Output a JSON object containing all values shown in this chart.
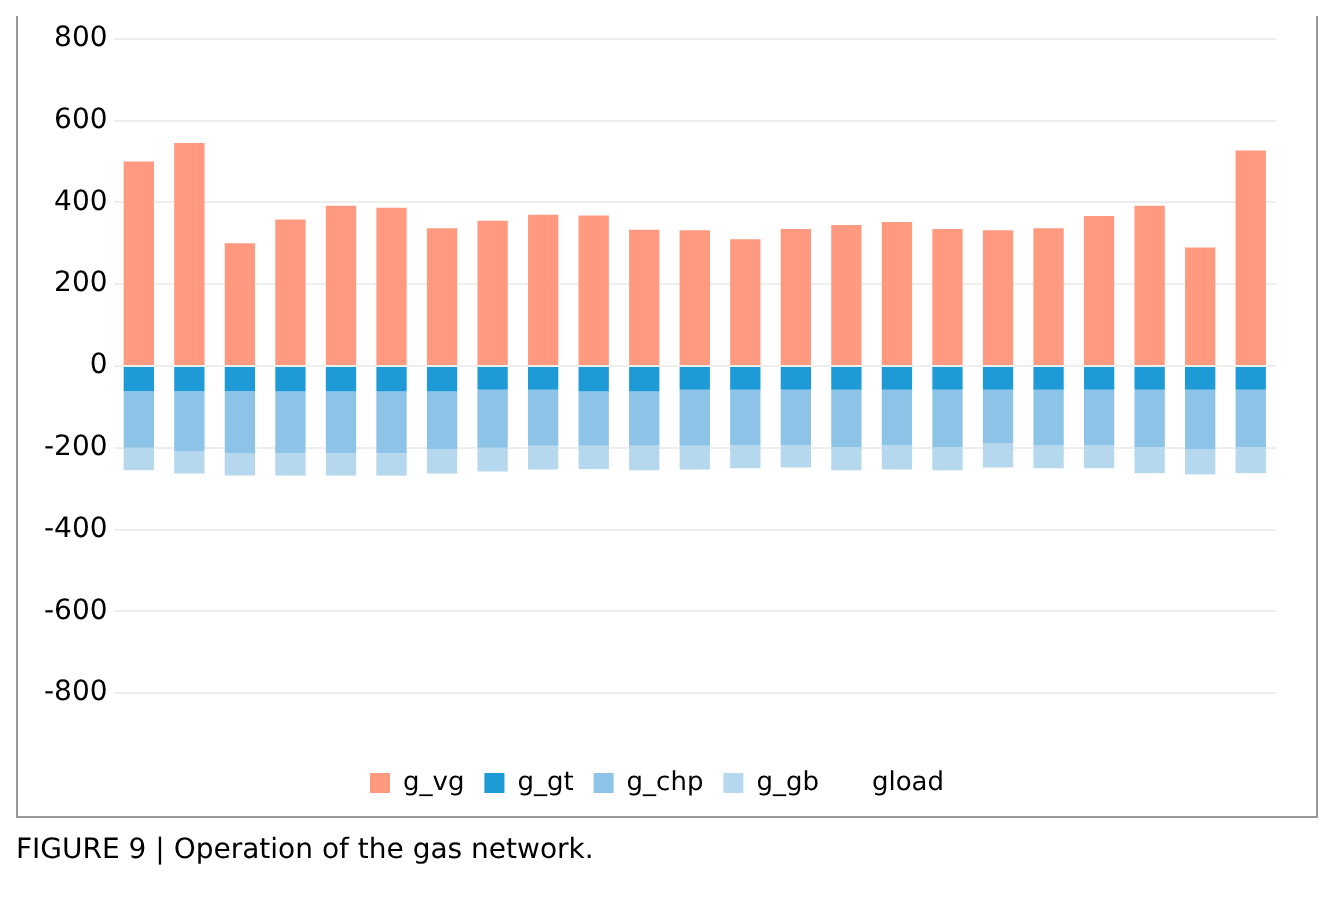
{
  "chart_data": {
    "type": "bar",
    "stacked": true,
    "categories": [
      null,
      null,
      null,
      null,
      null,
      null,
      null,
      null,
      null,
      null,
      null,
      null,
      null,
      null,
      null,
      null,
      null,
      null,
      null,
      null,
      null,
      null,
      null
    ],
    "series": [
      {
        "name": "g_vg",
        "color": "#ff9980",
        "values": [
          500,
          545,
          300,
          358,
          392,
          387,
          337,
          355,
          370,
          368,
          333,
          332,
          310,
          335,
          345,
          352,
          335,
          332,
          337,
          367,
          392,
          290,
          527
        ]
      },
      {
        "name": "g_gt",
        "color": "#1e9bd7",
        "values": [
          -62,
          -62,
          -62,
          -62,
          -62,
          -62,
          -62,
          -58,
          -58,
          -62,
          -62,
          -58,
          -58,
          -58,
          -58,
          -58,
          -58,
          -58,
          -58,
          -58,
          -58,
          -58,
          -58
        ]
      },
      {
        "name": "g_chp",
        "color": "#8cc3e6",
        "values": [
          -138,
          -146,
          -151,
          -151,
          -151,
          -151,
          -141,
          -142,
          -137,
          -133,
          -133,
          -137,
          -135,
          -135,
          -140,
          -135,
          -140,
          -130,
          -135,
          -135,
          -140,
          -145,
          -140
        ]
      },
      {
        "name": "g_gb",
        "color": "#b5d8ee",
        "values": [
          -55,
          -55,
          -55,
          -55,
          -55,
          -55,
          -60,
          -58,
          -58,
          -57,
          -60,
          -58,
          -57,
          -55,
          -57,
          -60,
          -57,
          -60,
          -57,
          -57,
          -64,
          -62,
          -64
        ]
      },
      {
        "name": "gload",
        "values": [
          null,
          null,
          null,
          null,
          null,
          null,
          null,
          null,
          null,
          null,
          null,
          null,
          null,
          null,
          null,
          null,
          null,
          null,
          null,
          null,
          null,
          null,
          null
        ]
      }
    ],
    "ylim": [
      -800,
      800
    ],
    "yticks": [
      -800,
      -600,
      -400,
      -200,
      0,
      200,
      400,
      600,
      800
    ],
    "grid": "y",
    "legend": "bottom",
    "annotations": [
      "FIGURE 9 | Operation of the gas network."
    ]
  }
}
